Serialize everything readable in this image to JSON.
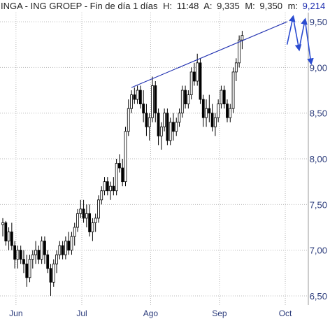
{
  "header": {
    "ticker": "INGA - ING GROEP",
    "period": "Fin de día 1 días",
    "h_label": "H:",
    "h_value": "11:48",
    "a_label": "A:",
    "a_value": "9,335",
    "m_label": "M:",
    "m_value": "9,350",
    "m2_label": "m:",
    "m2_value": "9,214"
  },
  "colors": {
    "candle": "#000000",
    "trendline": "#1f2fb0",
    "arrows": "#2a4bd0",
    "grid": "#b8b8b8",
    "axis_text": "#2a3a7a"
  },
  "chart_data": {
    "type": "candlestick",
    "title": "INGA - ING GROEP - Fin de día 1 días",
    "ylim": [
      6.4,
      9.6
    ],
    "y_ticks": [
      "9,50",
      "9,00",
      "8,50",
      "8,00",
      "7,50",
      "7,00",
      "6,50"
    ],
    "y_tick_values": [
      9.5,
      9.0,
      8.5,
      8.0,
      7.5,
      7.0,
      6.5
    ],
    "x_ticks": [
      "Jun",
      "Jul",
      "Ago",
      "Sep",
      "Oct"
    ],
    "x_tick_index": [
      3,
      25,
      48,
      71,
      93
    ],
    "grid": true,
    "series": [
      {
        "name": "INGA",
        "ohlc": [
          [
            7.28,
            7.35,
            7.15,
            7.3
          ],
          [
            7.3,
            7.32,
            7.05,
            7.1
          ],
          [
            7.1,
            7.25,
            7.0,
            7.2
          ],
          [
            7.2,
            7.3,
            7.0,
            7.05
          ],
          [
            7.05,
            7.1,
            6.8,
            6.9
          ],
          [
            6.9,
            7.05,
            6.8,
            7.0
          ],
          [
            7.0,
            7.05,
            6.85,
            6.9
          ],
          [
            6.9,
            7.0,
            6.75,
            6.85
          ],
          [
            6.85,
            6.95,
            6.6,
            6.7
          ],
          [
            6.7,
            6.95,
            6.65,
            6.9
          ],
          [
            6.9,
            7.0,
            6.8,
            6.95
          ],
          [
            6.95,
            7.1,
            6.85,
            7.0
          ],
          [
            7.0,
            7.05,
            6.85,
            6.9
          ],
          [
            6.9,
            7.15,
            6.85,
            7.1
          ],
          [
            7.1,
            7.15,
            6.85,
            6.95
          ],
          [
            6.95,
            7.0,
            6.75,
            6.8
          ],
          [
            6.8,
            6.85,
            6.5,
            6.65
          ],
          [
            6.65,
            6.9,
            6.6,
            6.85
          ],
          [
            6.85,
            7.0,
            6.75,
            6.95
          ],
          [
            6.95,
            7.1,
            6.9,
            7.05
          ],
          [
            7.05,
            7.1,
            6.9,
            6.95
          ],
          [
            6.95,
            7.15,
            6.9,
            7.1
          ],
          [
            7.1,
            7.2,
            6.95,
            7.0
          ],
          [
            7.0,
            7.2,
            6.95,
            7.15
          ],
          [
            7.15,
            7.3,
            7.05,
            7.25
          ],
          [
            7.25,
            7.45,
            7.2,
            7.4
          ],
          [
            7.4,
            7.55,
            7.35,
            7.45
          ],
          [
            7.45,
            7.55,
            7.3,
            7.35
          ],
          [
            7.35,
            7.5,
            7.25,
            7.4
          ],
          [
            7.4,
            7.5,
            7.15,
            7.2
          ],
          [
            7.2,
            7.35,
            7.1,
            7.3
          ],
          [
            7.3,
            7.4,
            7.2,
            7.35
          ],
          [
            7.35,
            7.6,
            7.3,
            7.55
          ],
          [
            7.55,
            7.7,
            7.5,
            7.65
          ],
          [
            7.65,
            7.8,
            7.6,
            7.75
          ],
          [
            7.75,
            7.8,
            7.6,
            7.65
          ],
          [
            7.65,
            7.75,
            7.55,
            7.7
          ],
          [
            7.7,
            7.8,
            7.6,
            7.65
          ],
          [
            7.65,
            8.0,
            7.6,
            7.95
          ],
          [
            7.95,
            8.05,
            7.85,
            7.9
          ],
          [
            7.9,
            8.0,
            7.7,
            7.75
          ],
          [
            7.75,
            8.35,
            7.7,
            8.3
          ],
          [
            8.3,
            8.65,
            8.25,
            8.55
          ],
          [
            8.55,
            8.75,
            8.5,
            8.7
          ],
          [
            8.7,
            8.78,
            8.6,
            8.65
          ],
          [
            8.65,
            8.8,
            8.6,
            8.75
          ],
          [
            8.75,
            8.8,
            8.55,
            8.6
          ],
          [
            8.6,
            8.75,
            8.4,
            8.5
          ],
          [
            8.5,
            8.6,
            8.25,
            8.35
          ],
          [
            8.35,
            8.5,
            8.2,
            8.45
          ],
          [
            8.45,
            8.9,
            8.4,
            8.8
          ],
          [
            8.8,
            8.85,
            8.4,
            8.5
          ],
          [
            8.5,
            8.55,
            8.15,
            8.25
          ],
          [
            8.25,
            8.4,
            8.1,
            8.35
          ],
          [
            8.35,
            8.55,
            8.3,
            8.5
          ],
          [
            8.5,
            8.55,
            8.15,
            8.2
          ],
          [
            8.2,
            8.45,
            8.15,
            8.4
          ],
          [
            8.4,
            8.5,
            8.2,
            8.3
          ],
          [
            8.3,
            8.45,
            8.25,
            8.4
          ],
          [
            8.4,
            8.55,
            8.35,
            8.5
          ],
          [
            8.5,
            8.8,
            8.45,
            8.75
          ],
          [
            8.75,
            8.8,
            8.55,
            8.6
          ],
          [
            8.6,
            8.75,
            8.55,
            8.7
          ],
          [
            8.7,
            9.0,
            8.65,
            8.95
          ],
          [
            8.95,
            9.05,
            8.8,
            8.85
          ],
          [
            8.85,
            9.15,
            8.8,
            9.05
          ],
          [
            9.05,
            9.1,
            8.6,
            8.65
          ],
          [
            8.65,
            8.7,
            8.35,
            8.45
          ],
          [
            8.45,
            8.65,
            8.35,
            8.55
          ],
          [
            8.55,
            8.7,
            8.4,
            8.5
          ],
          [
            8.5,
            8.6,
            8.3,
            8.35
          ],
          [
            8.35,
            8.5,
            8.25,
            8.45
          ],
          [
            8.45,
            8.65,
            8.4,
            8.6
          ],
          [
            8.6,
            8.8,
            8.55,
            8.75
          ],
          [
            8.75,
            8.8,
            8.55,
            8.6
          ],
          [
            8.6,
            8.65,
            8.4,
            8.45
          ],
          [
            8.45,
            8.6,
            8.4,
            8.55
          ],
          [
            8.55,
            9.0,
            8.5,
            8.95
          ],
          [
            8.95,
            9.1,
            8.85,
            9.05
          ],
          [
            9.05,
            9.35,
            9.0,
            9.3
          ],
          [
            9.3,
            9.4,
            9.2,
            9.35
          ]
        ]
      },
      {
        "name": "trendline",
        "points": [
          [
            43,
            8.78
          ],
          [
            95,
            9.5
          ]
        ]
      },
      {
        "name": "projection",
        "points": [
          [
            95,
            9.25
          ],
          [
            97,
            9.55
          ],
          [
            99,
            9.2
          ],
          [
            101,
            9.52
          ],
          [
            103,
            9.05
          ]
        ]
      }
    ]
  }
}
